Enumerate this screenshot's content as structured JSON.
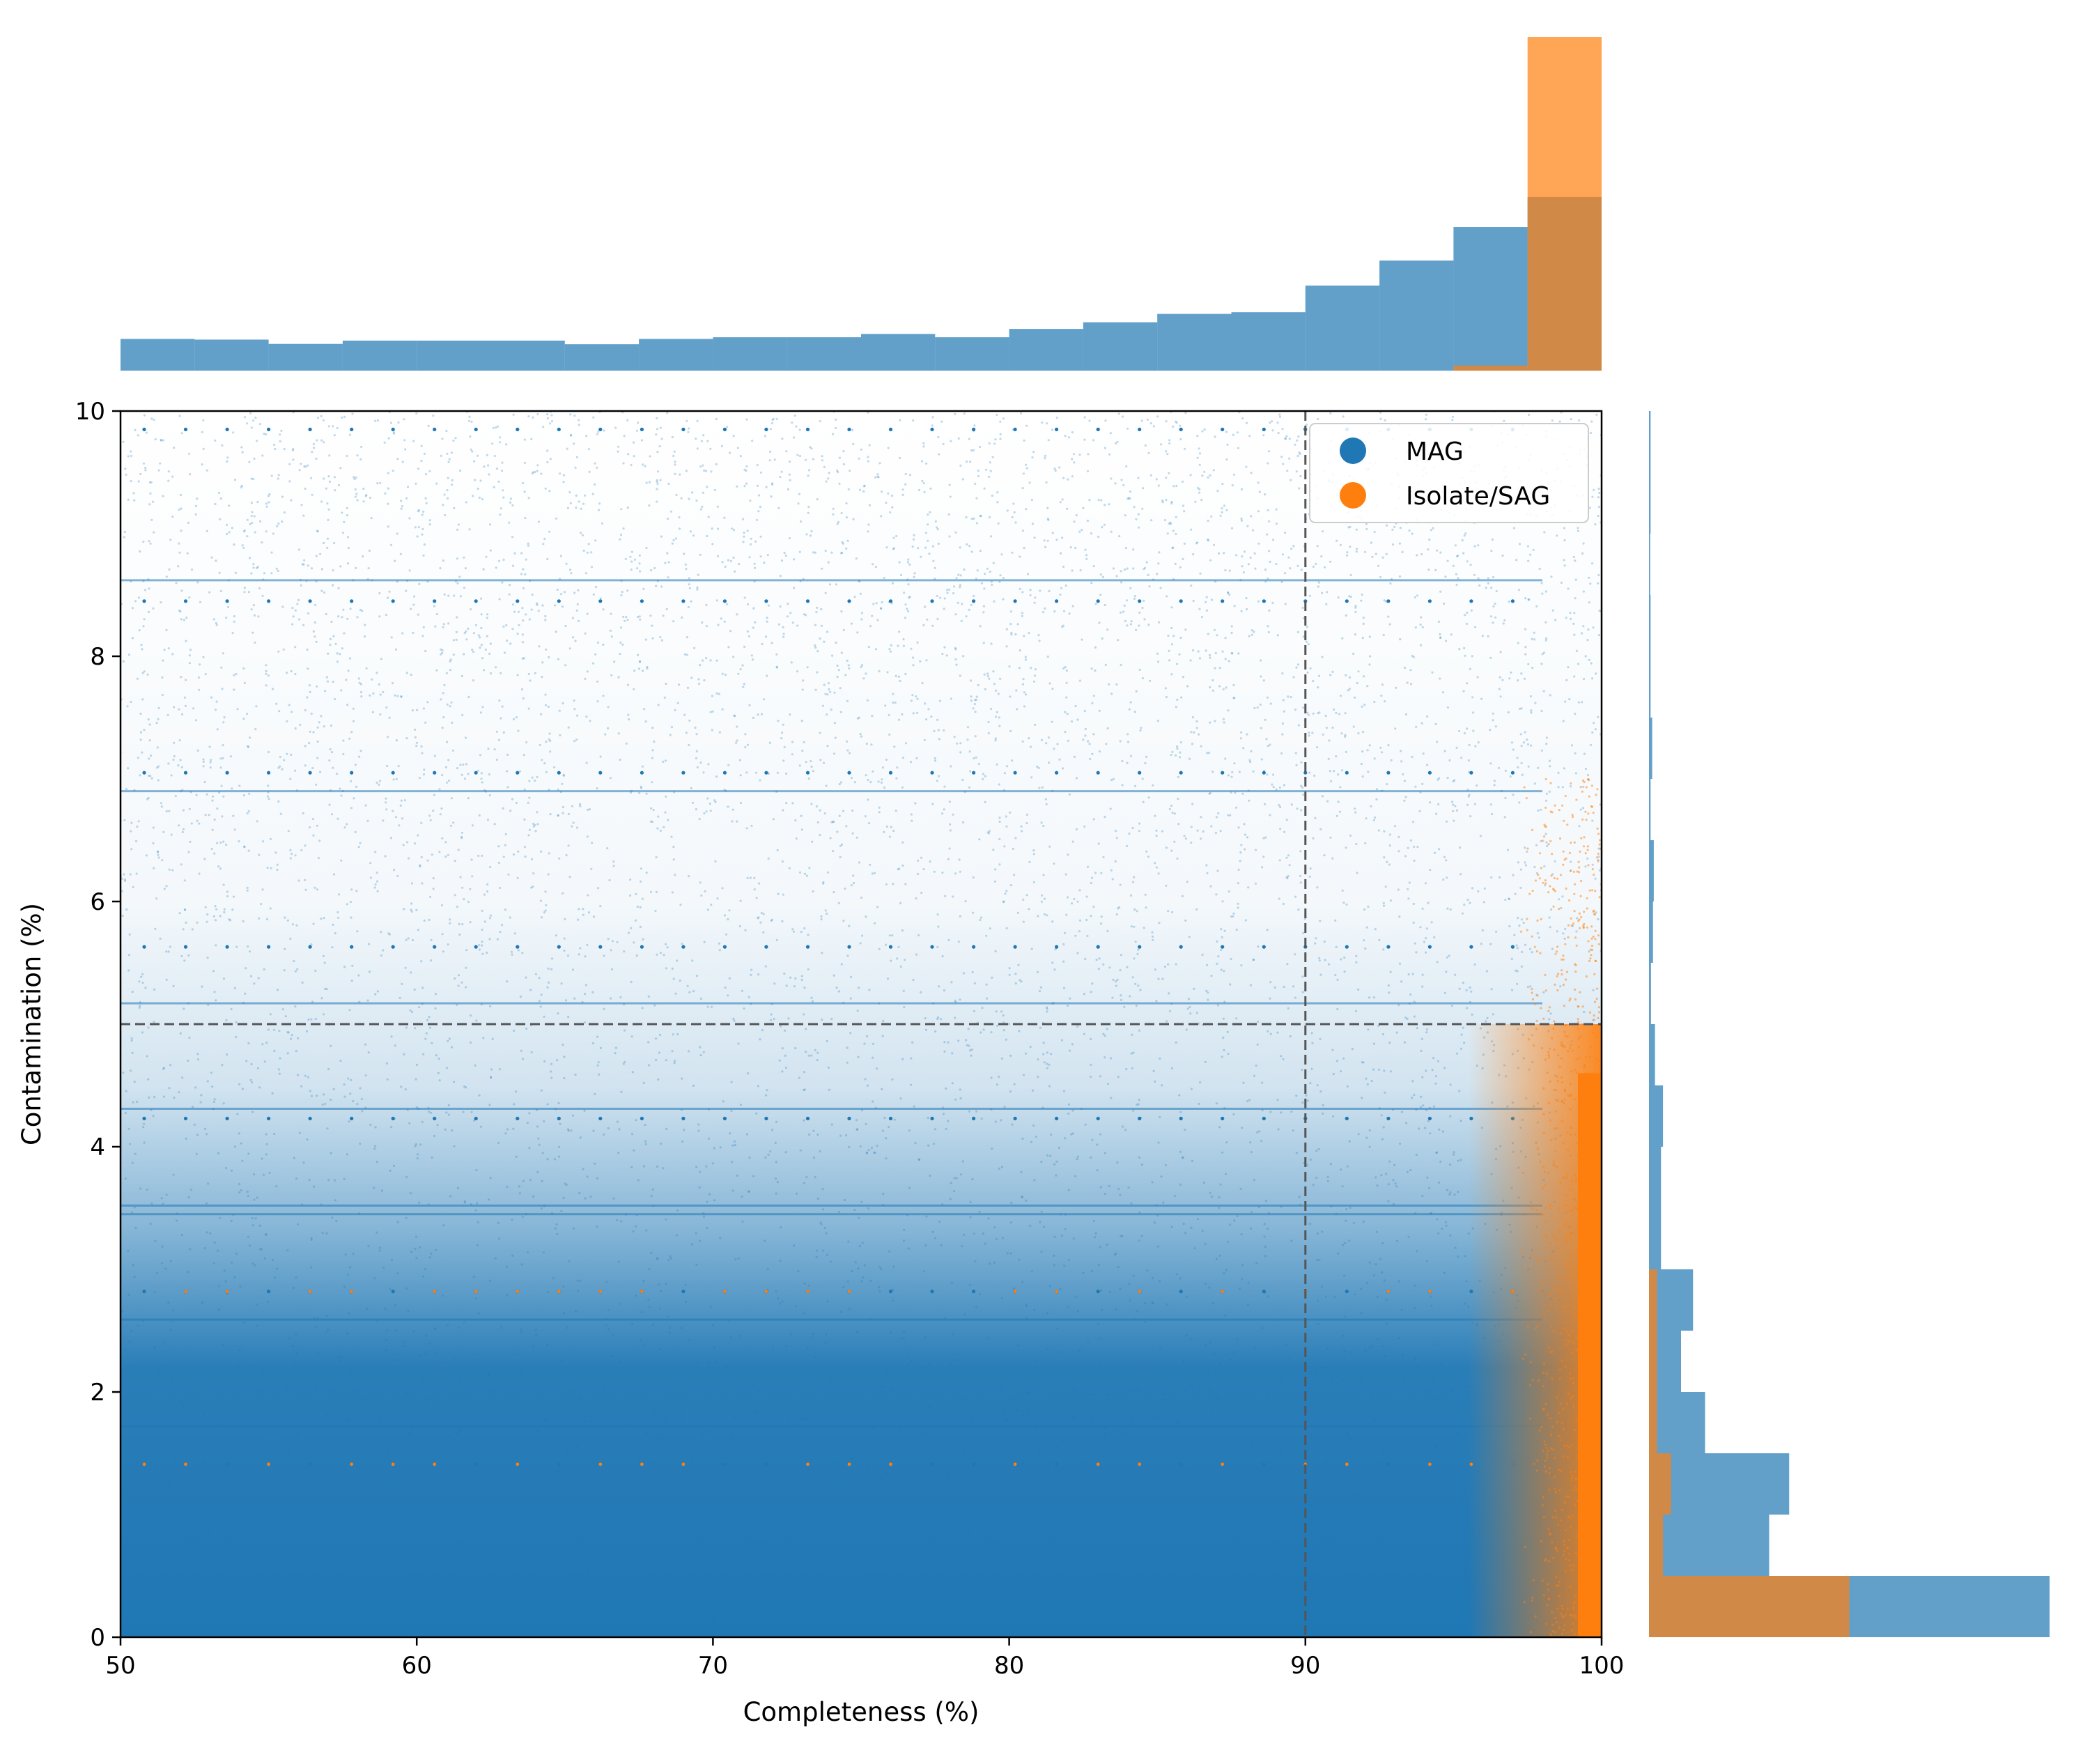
{
  "chart_data": {
    "type": "scatter",
    "xlabel": "Completeness (%)",
    "ylabel": "Contamination (%)",
    "xlim": [
      50,
      100
    ],
    "ylim": [
      0,
      10
    ],
    "xticks": [
      50,
      60,
      70,
      80,
      90,
      100
    ],
    "yticks": [
      0,
      2,
      4,
      6,
      8,
      10
    ],
    "grid": false,
    "legend": {
      "placement": "top-right",
      "entries": [
        {
          "label": "MAG",
          "color": "#1f77b4"
        },
        {
          "label": "Isolate/SAG",
          "color": "#ff7f0e"
        }
      ]
    },
    "reference_lines": [
      {
        "axis": "x",
        "value": 90,
        "style": "dashed",
        "color": "#555555"
      },
      {
        "axis": "y",
        "value": 5,
        "style": "dashed",
        "color": "#555555"
      }
    ],
    "series": [
      {
        "name": "MAG",
        "color": "#1f77b4",
        "description_density": "dense; concentrated at contamination below 4% across all completeness, thinning toward high contamination",
        "dotted_rows_contamination": [
          9.85,
          8.45,
          7.05,
          5.63,
          4.23,
          2.82,
          1.41
        ],
        "dense_rows_contamination": [
          8.62,
          6.9,
          5.17,
          4.31,
          3.45,
          3.52,
          2.59,
          1.72
        ]
      },
      {
        "name": "Isolate/SAG",
        "color": "#ff7f0e",
        "description_density": "concentrated at completeness above 98% and contamination below 5%",
        "dotted_rows_contamination": [
          2.82,
          1.41
        ]
      }
    ],
    "marginal_x_histogram": {
      "bin_edges": [
        50,
        52.5,
        55,
        57.5,
        60,
        62.5,
        65,
        67.5,
        70,
        72.5,
        75,
        77.5,
        80,
        82.5,
        85,
        87.5,
        90,
        92.5,
        95,
        97.5,
        100
      ],
      "MAG": [
        0.095,
        0.093,
        0.08,
        0.09,
        0.09,
        0.09,
        0.079,
        0.095,
        0.1,
        0.1,
        0.11,
        0.1,
        0.125,
        0.145,
        0.17,
        0.175,
        0.255,
        0.33,
        0.43,
        0.52
      ],
      "Isolate/SAG": [
        0,
        0,
        0,
        0,
        0,
        0,
        0,
        0,
        0,
        0,
        0,
        0,
        0,
        0,
        0,
        0,
        0,
        0,
        0.015,
        1.0
      ]
    },
    "marginal_y_histogram": {
      "bin_edges": [
        0,
        0.5,
        1,
        1.5,
        2,
        2.5,
        3,
        3.5,
        4,
        4.5,
        5,
        5.5,
        6,
        6.5,
        7,
        7.5,
        8,
        8.5,
        9,
        9.5,
        10
      ],
      "MAG": [
        1.0,
        0.3,
        0.35,
        0.14,
        0.08,
        0.11,
        0.03,
        0.03,
        0.035,
        0.015,
        0.005,
        0.01,
        0.012,
        0.004,
        0.008,
        0.004,
        0.004,
        0.003,
        0.004,
        0.004
      ],
      "Isolate/SAG": [
        0.5,
        0.035,
        0.055,
        0.02,
        0.02,
        0.02,
        0,
        0,
        0,
        0,
        0,
        0,
        0,
        0,
        0,
        0,
        0,
        0,
        0,
        0
      ]
    }
  }
}
